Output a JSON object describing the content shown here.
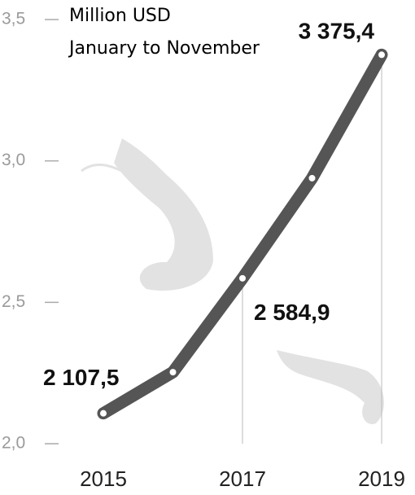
{
  "chart_data": {
    "type": "line",
    "title": "Million USD",
    "subtitle": "January to November",
    "categories": [
      "2015",
      null,
      "2017",
      null,
      "2019"
    ],
    "series": [
      {
        "color": "#555555",
        "values": [
          2.1075,
          2.253,
          2.5849,
          2.939,
          3.3754
        ],
        "value_labels": [
          "2 107,5",
          null,
          "2 584,9",
          null,
          "3 375,4"
        ]
      }
    ],
    "ylim": [
      2.0,
      3.5
    ],
    "yticks": [
      {
        "value": 2.0,
        "label": "2,0"
      },
      {
        "value": 2.5,
        "label": "2,5"
      },
      {
        "value": 3.0,
        "label": "3,0"
      },
      {
        "value": 3.5,
        "label": "3,5"
      }
    ]
  }
}
